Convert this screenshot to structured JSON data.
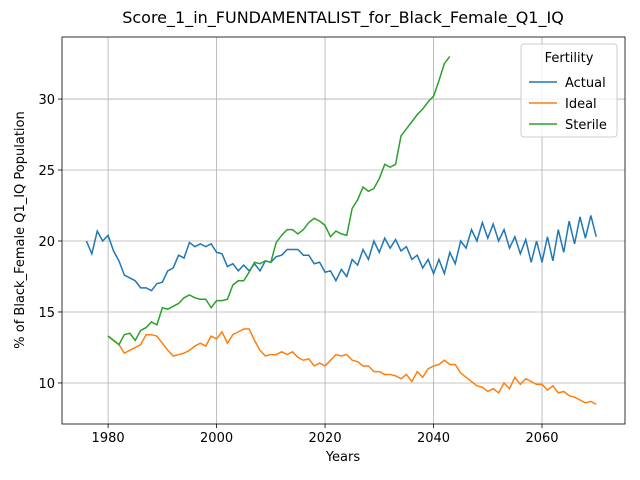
{
  "chart_data": {
    "type": "line",
    "title": "Score_1_in_FUNDAMENTALIST_for_Black_Female_Q1_IQ",
    "xlabel": "Years",
    "ylabel": "% of Black_Female Q1_IQ Population",
    "legend_title": "Fertility",
    "legend": "upper right",
    "grid": true,
    "xlim": [
      1971.5,
      2075.3
    ],
    "ylim": [
      7.11,
      34.37
    ],
    "xticks": [
      1980,
      2000,
      2020,
      2040,
      2060
    ],
    "yticks": [
      10,
      15,
      20,
      25,
      30
    ],
    "x": [
      1976,
      1977,
      1978,
      1979,
      1980,
      1981,
      1982,
      1983,
      1984,
      1985,
      1986,
      1987,
      1988,
      1989,
      1990,
      1991,
      1992,
      1993,
      1994,
      1995,
      1996,
      1997,
      1998,
      1999,
      2000,
      2001,
      2002,
      2003,
      2004,
      2005,
      2006,
      2007,
      2008,
      2009,
      2010,
      2011,
      2012,
      2013,
      2014,
      2015,
      2016,
      2017,
      2018,
      2019,
      2020,
      2021,
      2022,
      2023,
      2024,
      2025,
      2026,
      2027,
      2028,
      2029,
      2030,
      2031,
      2032,
      2033,
      2034,
      2035,
      2036,
      2037,
      2038,
      2039,
      2040,
      2041,
      2042,
      2043,
      2044,
      2045,
      2046,
      2047,
      2048,
      2049,
      2050,
      2051,
      2052,
      2053,
      2054,
      2055,
      2056,
      2057,
      2058,
      2059,
      2060,
      2061,
      2062,
      2063,
      2064,
      2065,
      2066,
      2067,
      2068,
      2069,
      2070
    ],
    "series": [
      {
        "name": "Actual",
        "color": "#1f77b4",
        "values": [
          20.0,
          19.1,
          20.7,
          20.0,
          20.4,
          19.3,
          18.6,
          17.6,
          17.4,
          17.2,
          16.7,
          16.7,
          16.5,
          17.0,
          17.1,
          17.9,
          18.1,
          19.0,
          18.8,
          19.9,
          19.6,
          19.8,
          19.6,
          19.8,
          19.2,
          19.1,
          18.2,
          18.4,
          17.9,
          18.3,
          17.9,
          18.4,
          17.9,
          18.6,
          18.5,
          18.9,
          19.0,
          19.4,
          19.4,
          19.4,
          19.0,
          19.0,
          18.4,
          18.5,
          17.8,
          17.9,
          17.2,
          18.0,
          17.5,
          18.7,
          18.3,
          19.4,
          18.7,
          20.0,
          19.2,
          20.2,
          19.5,
          20.1,
          19.3,
          19.6,
          18.7,
          19.0,
          18.1,
          18.7,
          17.7,
          18.7,
          17.7,
          19.2,
          18.4,
          20.0,
          19.5,
          20.8,
          20.0,
          21.3,
          20.2,
          21.2,
          20.0,
          20.8,
          19.5,
          20.3,
          19.1,
          20.1,
          18.5,
          20.0,
          18.5,
          20.3,
          18.6,
          20.8,
          19.2,
          21.4,
          19.8,
          21.7,
          20.2,
          21.8,
          20.3
        ]
      },
      {
        "name": "Ideal",
        "color": "#ff7f0e",
        "values": [
          null,
          null,
          null,
          null,
          13.3,
          13.0,
          12.7,
          12.1,
          12.3,
          12.5,
          12.7,
          13.4,
          13.4,
          13.3,
          12.8,
          12.3,
          11.9,
          12.0,
          12.1,
          12.3,
          12.6,
          12.8,
          12.6,
          13.3,
          13.1,
          13.6,
          12.8,
          13.4,
          13.6,
          13.8,
          13.8,
          13.0,
          12.3,
          11.9,
          12.0,
          12.0,
          12.2,
          12.0,
          12.2,
          11.8,
          11.6,
          11.7,
          11.2,
          11.4,
          11.2,
          11.6,
          12.0,
          11.9,
          12.0,
          11.6,
          11.5,
          11.2,
          11.2,
          10.8,
          10.8,
          10.6,
          10.6,
          10.5,
          10.3,
          10.6,
          10.1,
          10.8,
          10.4,
          11.0,
          11.2,
          11.3,
          11.6,
          11.3,
          11.3,
          10.7,
          10.4,
          10.1,
          9.8,
          9.7,
          9.4,
          9.6,
          9.3,
          10.0,
          9.6,
          10.4,
          9.9,
          10.3,
          10.1,
          9.9,
          9.9,
          9.5,
          9.8,
          9.3,
          9.4,
          9.1,
          9.0,
          8.8,
          8.6,
          8.7,
          8.5
        ]
      },
      {
        "name": "Sterile",
        "color": "#2ca02c",
        "values": [
          null,
          null,
          null,
          null,
          13.3,
          13.0,
          12.7,
          13.4,
          13.5,
          13.0,
          13.7,
          13.9,
          14.3,
          14.1,
          15.3,
          15.2,
          15.4,
          15.6,
          16.0,
          16.2,
          16.0,
          15.9,
          15.9,
          15.3,
          15.8,
          15.8,
          15.9,
          16.9,
          17.2,
          17.2,
          17.8,
          18.5,
          18.4,
          18.6,
          18.5,
          19.9,
          20.4,
          20.8,
          20.8,
          20.5,
          20.8,
          21.3,
          21.6,
          21.4,
          21.1,
          20.3,
          20.7,
          20.5,
          20.4,
          22.3,
          22.9,
          23.8,
          23.5,
          23.7,
          24.4,
          25.4,
          25.2,
          25.4,
          27.4,
          27.9,
          28.4,
          28.9,
          29.3,
          29.8,
          30.2,
          31.3,
          32.5,
          33.0,
          null,
          null,
          null,
          null,
          null,
          null,
          null,
          null,
          null,
          null,
          null,
          null,
          null,
          null,
          null,
          null,
          null,
          null,
          null,
          null,
          null,
          null,
          null,
          null,
          null,
          null,
          null
        ]
      }
    ]
  }
}
